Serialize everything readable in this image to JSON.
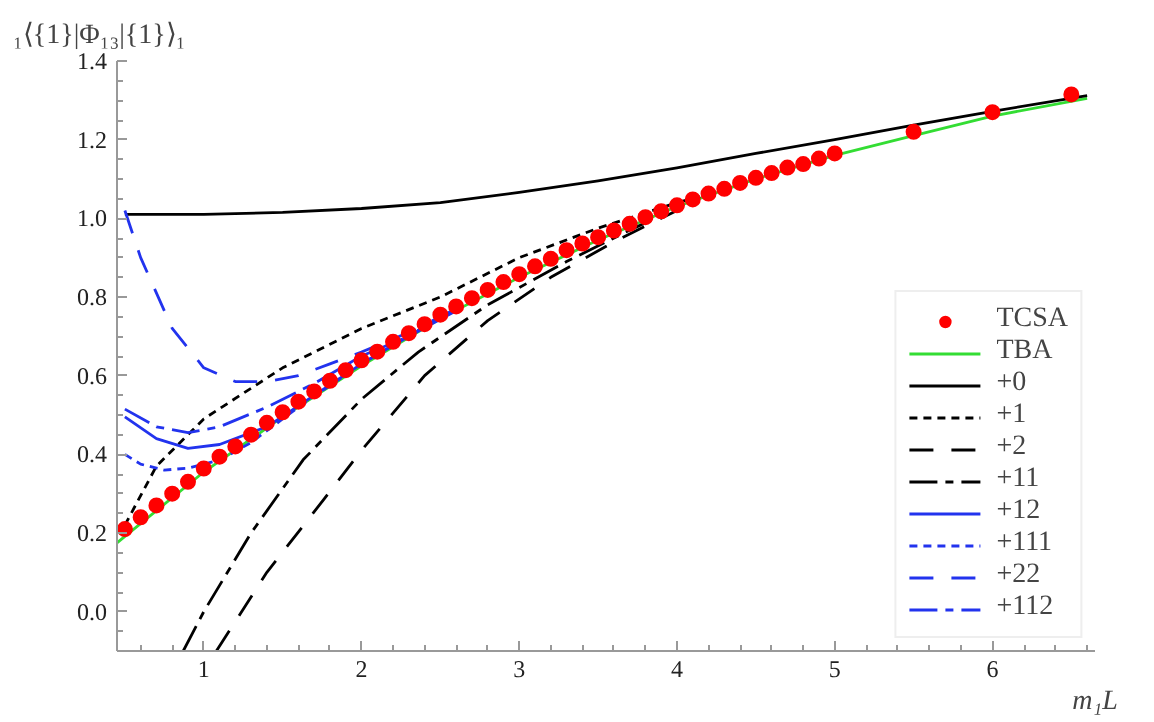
{
  "chart_data": {
    "type": "line",
    "xlabel": "m₁L",
    "ylabel": "₁⟨{1}|Φ₁₃|{1}⟩₁",
    "xlim": [
      0.45,
      6.65
    ],
    "ylim": [
      -0.1,
      1.4
    ],
    "xticks": [
      1,
      2,
      3,
      4,
      5,
      6
    ],
    "yticks": [
      {
        "value": 0,
        "label": "0.0"
      },
      {
        "value": 0.2,
        "label": "0.2"
      },
      {
        "value": 0.4,
        "label": "0.4"
      },
      {
        "value": 0.6,
        "label": "0.6"
      },
      {
        "value": 0.8,
        "label": "0.8"
      },
      {
        "value": 1.0,
        "label": "1.0"
      },
      {
        "value": 1.2,
        "label": "1.2"
      },
      {
        "value": 1.4,
        "label": "1.4"
      }
    ],
    "legend": "bottom right",
    "series": [
      {
        "name": "TCSA",
        "type": "scatter",
        "marker": "circle",
        "color": "#ff0000",
        "x": [
          0.5,
          0.6,
          0.7,
          0.8,
          0.9,
          1.0,
          1.1,
          1.2,
          1.3,
          1.4,
          1.5,
          1.6,
          1.7,
          1.8,
          1.9,
          2.0,
          2.1,
          2.2,
          2.3,
          2.4,
          2.5,
          2.6,
          2.7,
          2.8,
          2.9,
          3.0,
          3.1,
          3.2,
          3.3,
          3.4,
          3.5,
          3.6,
          3.7,
          3.8,
          3.9,
          4.0,
          4.1,
          4.2,
          4.3,
          4.4,
          4.5,
          4.6,
          4.7,
          4.8,
          4.9,
          5.0,
          5.5,
          6.0,
          6.5
        ],
        "values": [
          0.21,
          0.24,
          0.27,
          0.3,
          0.33,
          0.364,
          0.394,
          0.42,
          0.45,
          0.48,
          0.507,
          0.534,
          0.56,
          0.587,
          0.614,
          0.639,
          0.661,
          0.686,
          0.708,
          0.731,
          0.755,
          0.776,
          0.797,
          0.818,
          0.838,
          0.858,
          0.878,
          0.897,
          0.919,
          0.936,
          0.952,
          0.969,
          0.986,
          1.003,
          1.018,
          1.033,
          1.048,
          1.063,
          1.075,
          1.09,
          1.103,
          1.115,
          1.129,
          1.138,
          1.152,
          1.165,
          1.22,
          1.27,
          1.315
        ]
      },
      {
        "name": "TBA",
        "line_style": "solid",
        "color": "#33dd33",
        "x": [
          0.45,
          1.0,
          1.5,
          2.0,
          2.5,
          3.0,
          3.5,
          4.0,
          4.5,
          5.0,
          5.5,
          6.0,
          6.6
        ],
        "values": [
          0.175,
          0.355,
          0.495,
          0.625,
          0.745,
          0.85,
          0.945,
          1.03,
          1.1,
          1.16,
          1.21,
          1.26,
          1.305
        ]
      },
      {
        "name": "+0",
        "line_style": "solid",
        "color": "#000000",
        "x": [
          0.5,
          1.0,
          1.5,
          2.0,
          2.5,
          3.0,
          3.5,
          4.0,
          4.5,
          5.0,
          5.5,
          6.0,
          6.6
        ],
        "values": [
          1.01,
          1.01,
          1.015,
          1.025,
          1.04,
          1.066,
          1.095,
          1.128,
          1.165,
          1.2,
          1.237,
          1.272,
          1.312
        ]
      },
      {
        "name": "+1",
        "line_style": "dashed",
        "color": "#000000",
        "x": [
          0.5,
          0.7,
          1.0,
          1.5,
          2.0,
          2.5,
          3.0,
          3.5,
          4.0,
          4.3
        ],
        "values": [
          0.22,
          0.37,
          0.49,
          0.62,
          0.72,
          0.8,
          0.9,
          0.975,
          1.04,
          1.07
        ]
      },
      {
        "name": "+2",
        "line_style": "long dashed",
        "color": "#000000",
        "x": [
          1.08,
          1.4,
          1.76,
          2.0,
          2.4,
          2.8,
          3.2,
          3.6,
          4.0
        ],
        "values": [
          -0.1,
          0.1,
          0.285,
          0.41,
          0.6,
          0.74,
          0.85,
          0.94,
          1.02
        ]
      },
      {
        "name": "+11",
        "line_style": "dash-dot",
        "color": "#000000",
        "x": [
          0.87,
          1.0,
          1.3,
          1.63,
          2.0,
          2.36,
          2.8,
          3.3,
          3.7,
          4.0
        ],
        "values": [
          -0.1,
          0.0,
          0.2,
          0.386,
          0.54,
          0.66,
          0.78,
          0.89,
          0.97,
          1.025
        ]
      },
      {
        "name": "+12",
        "line_style": "solid",
        "color": "#2233ee",
        "x": [
          0.5,
          0.7,
          0.9,
          1.1,
          1.4,
          1.7,
          2.0,
          2.3,
          2.6
        ],
        "values": [
          0.495,
          0.44,
          0.415,
          0.425,
          0.47,
          0.55,
          0.63,
          0.7,
          0.765
        ]
      },
      {
        "name": "+111",
        "line_style": "dashed",
        "color": "#2233ee",
        "x": [
          0.5,
          0.6,
          0.75,
          0.9,
          1.1,
          1.3,
          1.6,
          2.0,
          2.4
        ],
        "values": [
          0.4,
          0.375,
          0.36,
          0.365,
          0.385,
          0.43,
          0.52,
          0.63,
          0.725
        ]
      },
      {
        "name": "+22",
        "line_style": "long dashed",
        "color": "#2233ee",
        "x": [
          0.5,
          0.6,
          0.8,
          1.0,
          1.2,
          1.4,
          1.6,
          1.8,
          2.0,
          2.3,
          2.6
        ],
        "values": [
          1.02,
          0.9,
          0.72,
          0.62,
          0.585,
          0.585,
          0.6,
          0.63,
          0.66,
          0.71,
          0.77
        ]
      },
      {
        "name": "+112",
        "line_style": "dash-dot",
        "color": "#2233ee",
        "x": [
          0.5,
          0.7,
          0.9,
          1.1,
          1.4,
          1.7,
          2.0,
          2.3,
          2.6
        ],
        "values": [
          0.515,
          0.47,
          0.455,
          0.47,
          0.52,
          0.58,
          0.65,
          0.7,
          0.77
        ]
      }
    ]
  }
}
